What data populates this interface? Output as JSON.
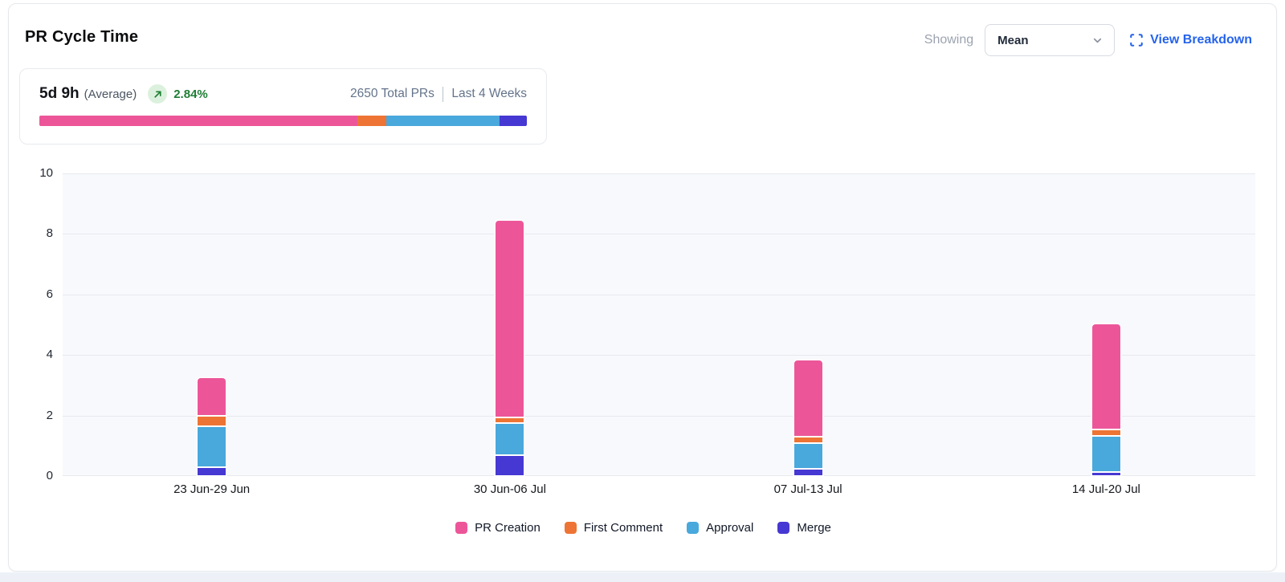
{
  "header": {
    "title": "PR Cycle Time",
    "showing_label": "Showing",
    "metric_dropdown": {
      "value": "Mean"
    },
    "view_breakdown_label": "View Breakdown",
    "link_color": "#2563eb"
  },
  "summary": {
    "value": "5d 9h",
    "value_qualifier": "(Average)",
    "trend": {
      "direction": "up",
      "percent": "2.84%",
      "color": "#1e7e34",
      "badge_bg": "#dcf1dd"
    },
    "total_prs": "2650 Total PRs",
    "period": "Last 4 Weeks",
    "distribution": [
      {
        "name": "PR Creation",
        "color": "#ec5699",
        "percent": 65.3
      },
      {
        "name": "First Comment",
        "color": "#ed7434",
        "percent": 5.9
      },
      {
        "name": "Approval",
        "color": "#49a8dc",
        "percent": 23.2
      },
      {
        "name": "Merge",
        "color": "#4638d2",
        "percent": 5.6
      }
    ]
  },
  "chart_data": {
    "type": "bar",
    "stacked": true,
    "title": "PR Cycle Time",
    "categories": [
      "23 Jun-29 Jun",
      "30 Jun-06 Jul",
      "07 Jul-13 Jul",
      "14 Jul-20 Jul"
    ],
    "series": [
      {
        "name": "PR Creation",
        "color": "#ec5699",
        "values": [
          1.25,
          6.5,
          2.55,
          3.5
        ]
      },
      {
        "name": "First Comment",
        "color": "#ed7434",
        "values": [
          0.35,
          0.2,
          0.2,
          0.2
        ]
      },
      {
        "name": "Approval",
        "color": "#49a8dc",
        "values": [
          1.35,
          1.05,
          0.85,
          1.2
        ]
      },
      {
        "name": "Merge",
        "color": "#4638d2",
        "values": [
          0.3,
          0.7,
          0.25,
          0.1
        ]
      }
    ],
    "stack_order_bottom_to_top": [
      "Merge",
      "Approval",
      "First Comment",
      "PR Creation"
    ],
    "totals": [
      3.25,
      8.45,
      3.85,
      5.0
    ],
    "xlabel": "",
    "ylabel": "",
    "ylim": [
      0,
      10
    ],
    "yticks": [
      0,
      2,
      4,
      6,
      8,
      10
    ],
    "grid": "horizontal",
    "plot_bg": "#f8f9fc",
    "legend_position": "bottom"
  }
}
